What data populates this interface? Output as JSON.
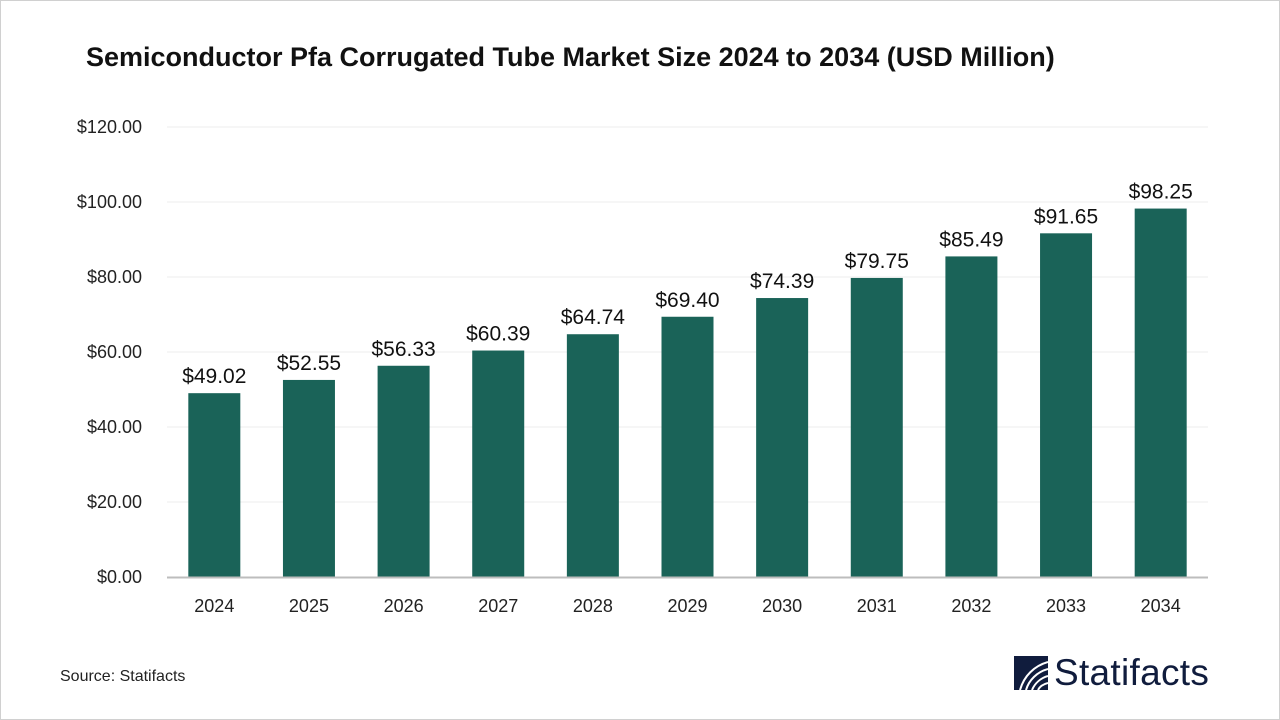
{
  "title": "Semiconductor Pfa Corrugated Tube Market Size 2024 to 2034 (USD Million)",
  "source": "Source: Statifacts",
  "logo_text": "Statifacts",
  "colors": {
    "bar": "#1a6358",
    "grid": "#ececec",
    "axis": "#bdbdbd",
    "logo": "#101c3d"
  },
  "chart_data": {
    "type": "bar",
    "title": "Semiconductor Pfa Corrugated Tube Market Size 2024 to 2034 (USD Million)",
    "categories": [
      "2024",
      "2025",
      "2026",
      "2027",
      "2028",
      "2029",
      "2030",
      "2031",
      "2032",
      "2033",
      "2034"
    ],
    "values": [
      49.02,
      52.55,
      56.33,
      60.39,
      64.74,
      69.4,
      74.39,
      79.75,
      85.49,
      91.65,
      98.25
    ],
    "data_labels": [
      "$49.02",
      "$52.55",
      "$56.33",
      "$60.39",
      "$64.74",
      "$69.40",
      "$74.39",
      "$79.75",
      "$85.49",
      "$91.65",
      "$98.25"
    ],
    "yticks": [
      0,
      20,
      40,
      60,
      80,
      100,
      120
    ],
    "ytick_labels": [
      "$0.00",
      "$20.00",
      "$40.00",
      "$60.00",
      "$80.00",
      "$100.00",
      "$120.00"
    ],
    "ylim": [
      0,
      120
    ],
    "xlabel": "",
    "ylabel": "",
    "grid": true,
    "legend": "none"
  }
}
